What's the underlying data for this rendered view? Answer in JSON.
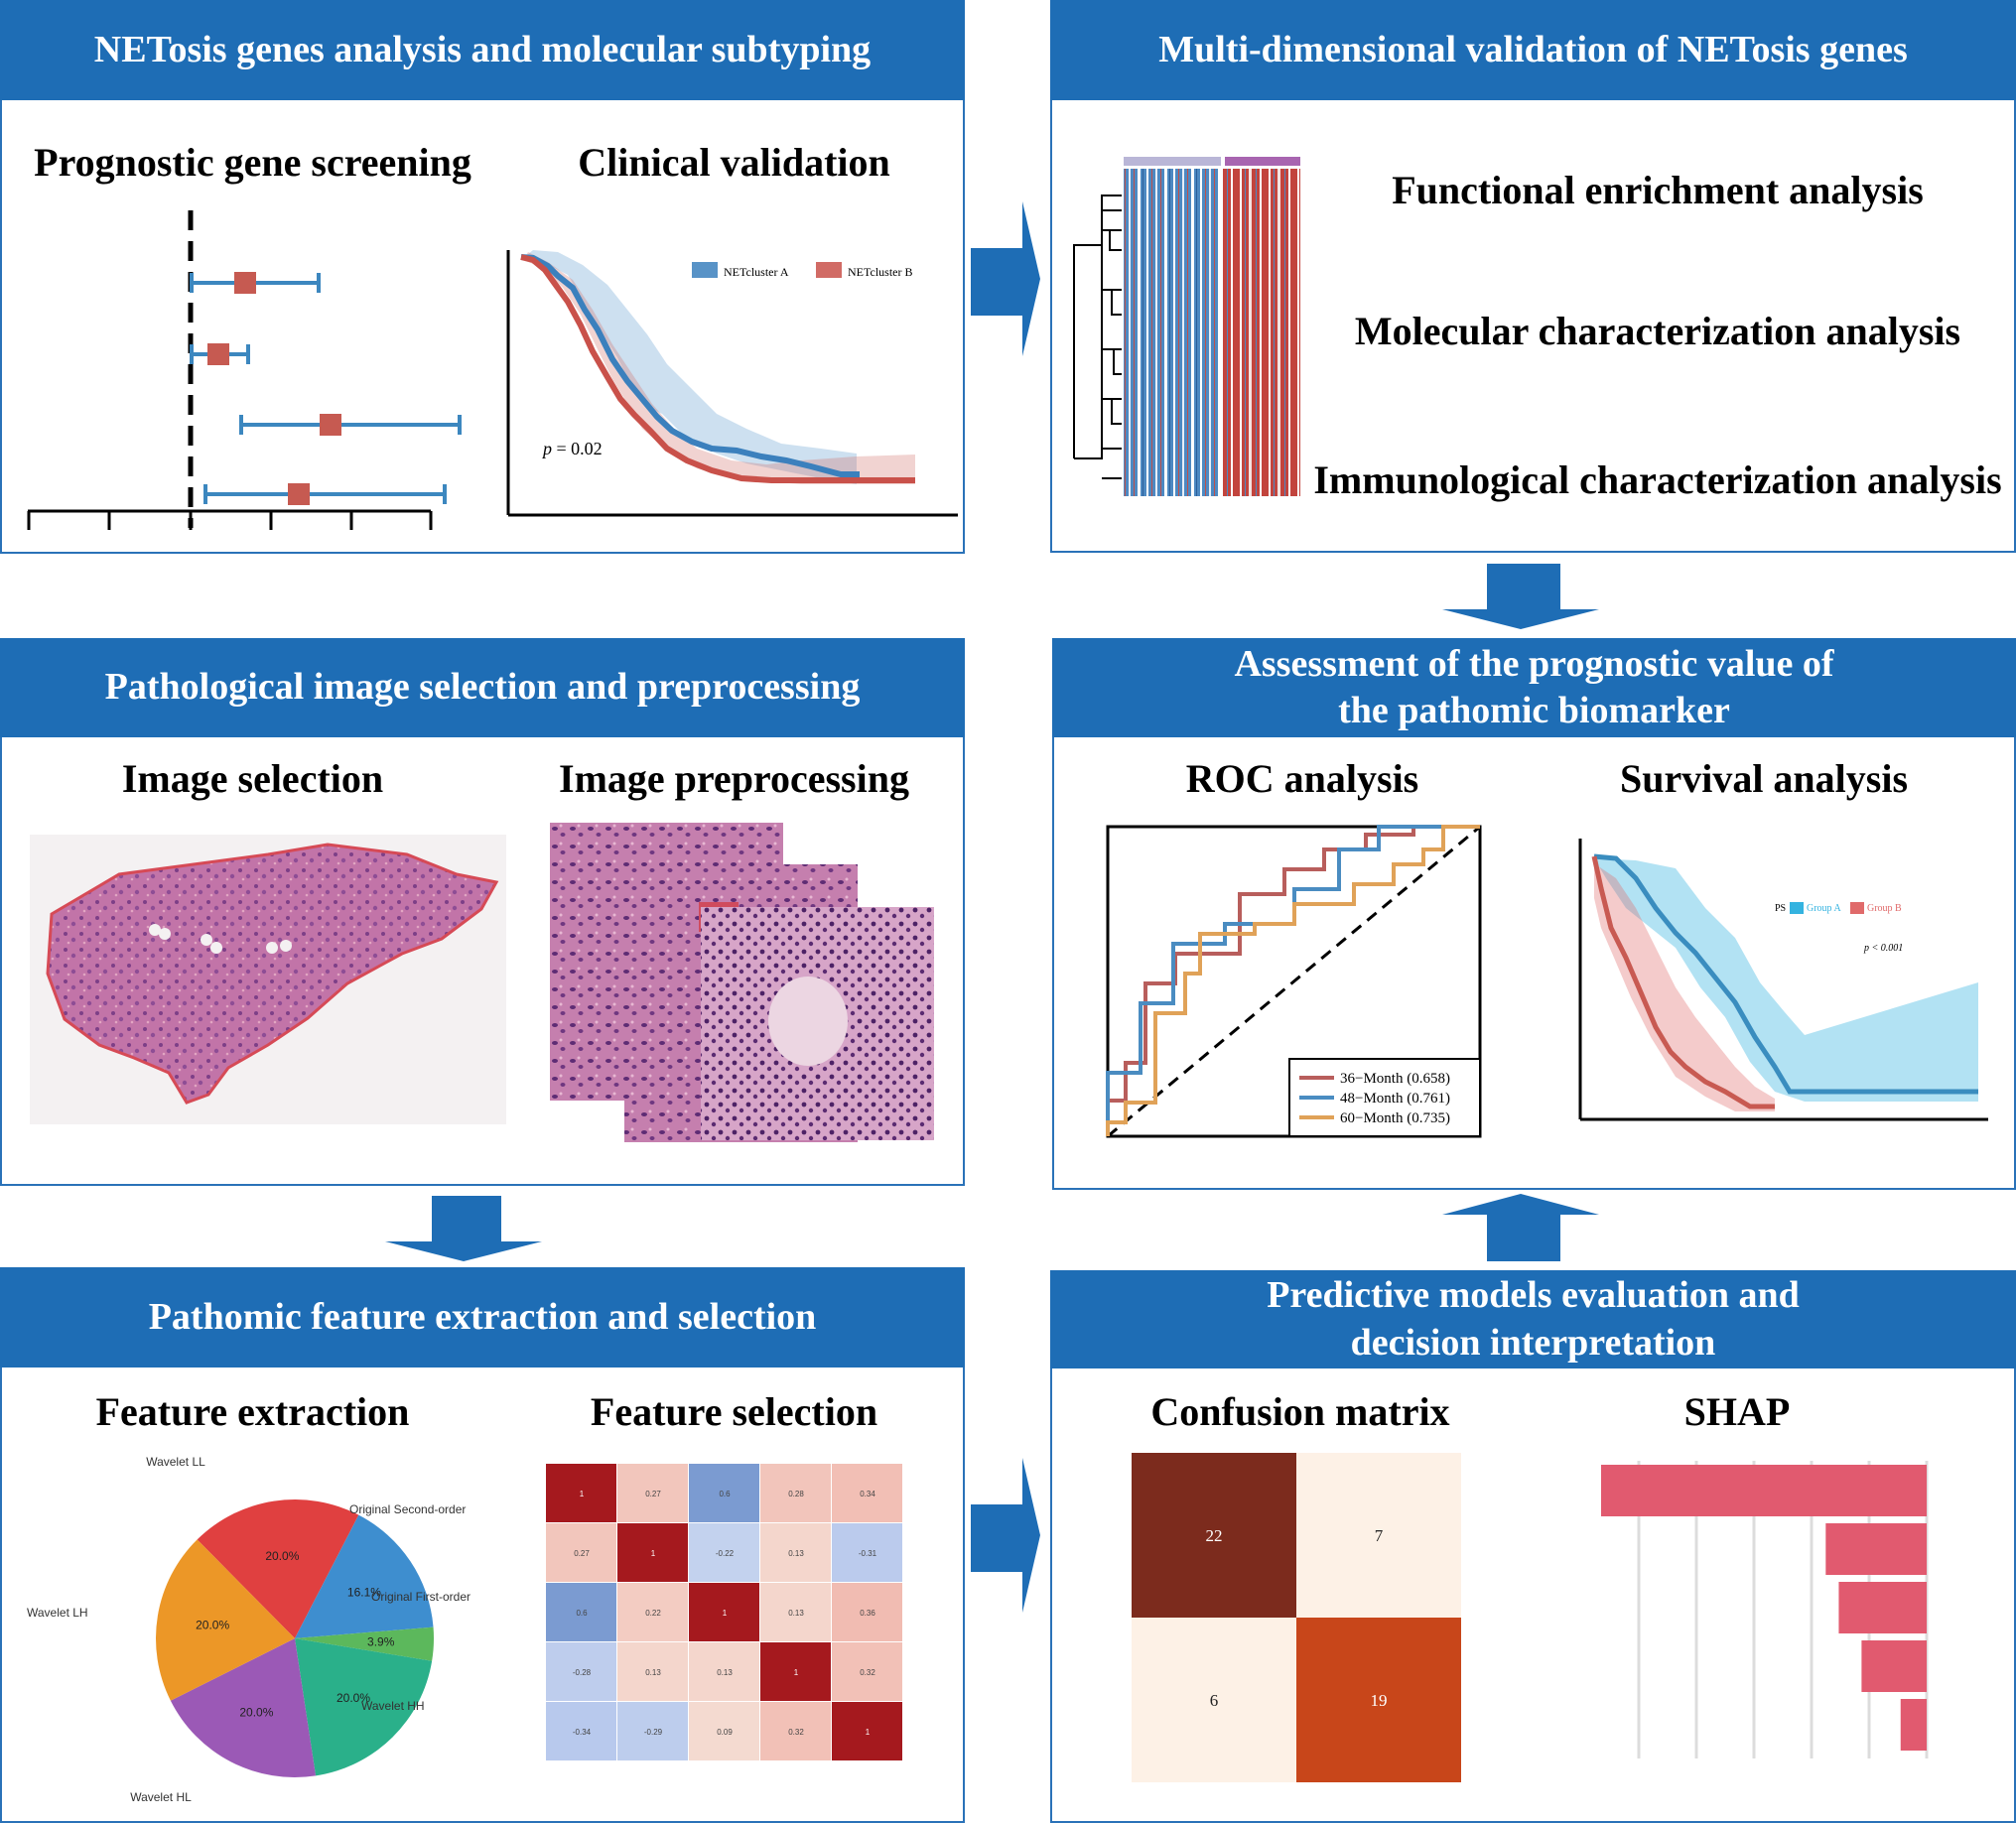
{
  "panels": {
    "netosis": {
      "title": "NETosis genes analysis and molecular subtyping",
      "left_sub": "Prognostic gene screening",
      "right_sub": "Clinical validation",
      "km": {
        "legend_a": "NETcluster A",
        "legend_b": "NETcluster B",
        "p_label": "p",
        "p_value": " = 0.02"
      }
    },
    "validation": {
      "title": "Multi-dimensional validation of NETosis genes",
      "items": [
        "Functional enrichment analysis",
        "Molecular characterization analysis",
        "Immunological characterization analysis"
      ]
    },
    "pathology": {
      "title": "Pathological image selection and preprocessing",
      "left_sub": "Image selection",
      "right_sub": "Image preprocessing"
    },
    "assessment": {
      "title_line1": "Assessment of the prognostic value of",
      "title_line2": "the pathomic biomarker",
      "left_sub": "ROC analysis",
      "right_sub": "Survival analysis",
      "roc_legend": [
        "36−Month (0.658)",
        "48−Month (0.761)",
        "60−Month (0.735)"
      ],
      "surv_legend_title": "PS",
      "surv_legend_a": "Group A",
      "surv_legend_b": "Group B",
      "surv_p": "p < 0.001"
    },
    "features": {
      "title": "Pathomic feature extraction and selection",
      "left_sub": "Feature extraction",
      "right_sub": "Feature selection",
      "pie": [
        {
          "label": "Wavelet LL",
          "pct": "20.0%"
        },
        {
          "label": "Original Second-order",
          "pct": "16.1%"
        },
        {
          "label": "Original First-order",
          "pct": "3.9%"
        },
        {
          "label": "Wavelet HH",
          "pct": "20.0%"
        },
        {
          "label": "Wavelet HL",
          "pct": "20.0%"
        },
        {
          "label": "Wavelet LH",
          "pct": "20.0%"
        }
      ],
      "corr": [
        [
          "1",
          "0.27",
          "0.6",
          "0.28",
          "0.34"
        ],
        [
          "0.27",
          "1",
          "-0.22",
          "0.13",
          "-0.31"
        ],
        [
          "0.6",
          "0.22",
          "1",
          "0.13",
          "0.36"
        ],
        [
          "-0.28",
          "0.13",
          "0.13",
          "1",
          "0.32"
        ],
        [
          "-0.34",
          "-0.29",
          "0.09",
          "0.32",
          "1"
        ]
      ]
    },
    "predictive": {
      "title_line1": "Predictive models evaluation and",
      "title_line2": "decision interpretation",
      "left_sub": "Confusion matrix",
      "right_sub": "SHAP",
      "confusion": [
        [
          "22",
          "7"
        ],
        [
          "6",
          "19"
        ]
      ]
    }
  },
  "chart_data": [
    {
      "type": "pie",
      "title": "Feature extraction",
      "categories": [
        "Wavelet LL",
        "Original Second-order",
        "Original First-order",
        "Wavelet HH",
        "Wavelet HL",
        "Wavelet LH"
      ],
      "values": [
        20.0,
        16.1,
        3.9,
        20.0,
        20.0,
        20.0
      ]
    },
    {
      "type": "heatmap",
      "title": "Feature selection",
      "values": [
        [
          1,
          0.27,
          0.6,
          0.28,
          0.34
        ],
        [
          0.27,
          1,
          -0.22,
          0.13,
          -0.31
        ],
        [
          0.6,
          0.22,
          1,
          0.13,
          0.36
        ],
        [
          -0.28,
          0.13,
          0.13,
          1,
          0.32
        ],
        [
          -0.34,
          -0.29,
          0.09,
          0.32,
          1
        ]
      ]
    },
    {
      "type": "heatmap",
      "title": "Confusion matrix",
      "values": [
        [
          22,
          7
        ],
        [
          6,
          19
        ]
      ]
    },
    {
      "type": "bar",
      "title": "SHAP",
      "values": [
        1.0,
        0.31,
        0.27,
        0.2,
        0.08
      ]
    },
    {
      "type": "line",
      "title": "ROC analysis",
      "series": [
        {
          "name": "36−Month (0.658)",
          "auc": 0.658
        },
        {
          "name": "48−Month (0.761)",
          "auc": 0.761
        },
        {
          "name": "60−Month (0.735)",
          "auc": 0.735
        }
      ]
    },
    {
      "type": "line",
      "title": "Clinical validation",
      "series": [
        {
          "name": "NETcluster A"
        },
        {
          "name": "NETcluster B"
        }
      ],
      "annotation": "p = 0.02"
    }
  ]
}
